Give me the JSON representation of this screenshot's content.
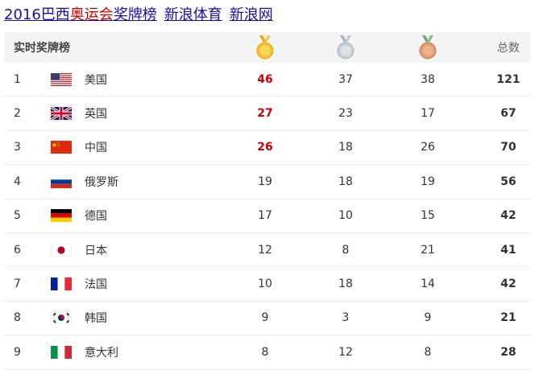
{
  "title": {
    "part1": "2016巴西",
    "part2_highlight": "奥运会",
    "part3": "奖牌榜",
    "part4": "新浪体育",
    "part5": "新浪网"
  },
  "table": {
    "header_label": "实时奖牌榜",
    "header_total": "总数",
    "medal_icons": [
      "gold-medal-icon",
      "silver-medal-icon",
      "bronze-medal-icon"
    ],
    "rows": [
      {
        "rank": "1",
        "country": "美国",
        "flag": "usa-flag-icon",
        "gold": "46",
        "silver": "37",
        "bronze": "38",
        "total": "121",
        "gold_highlight": true
      },
      {
        "rank": "2",
        "country": "英国",
        "flag": "uk-flag-icon",
        "gold": "27",
        "silver": "23",
        "bronze": "17",
        "total": "67",
        "gold_highlight": true
      },
      {
        "rank": "3",
        "country": "中国",
        "flag": "china-flag-icon",
        "gold": "26",
        "silver": "18",
        "bronze": "26",
        "total": "70",
        "gold_highlight": true
      },
      {
        "rank": "4",
        "country": "俄罗斯",
        "flag": "russia-flag-icon",
        "gold": "19",
        "silver": "18",
        "bronze": "19",
        "total": "56",
        "gold_highlight": false
      },
      {
        "rank": "5",
        "country": "德国",
        "flag": "germany-flag-icon",
        "gold": "17",
        "silver": "10",
        "bronze": "15",
        "total": "42",
        "gold_highlight": false
      },
      {
        "rank": "6",
        "country": "日本",
        "flag": "japan-flag-icon",
        "gold": "12",
        "silver": "8",
        "bronze": "21",
        "total": "41",
        "gold_highlight": false
      },
      {
        "rank": "7",
        "country": "法国",
        "flag": "france-flag-icon",
        "gold": "10",
        "silver": "18",
        "bronze": "14",
        "total": "42",
        "gold_highlight": false
      },
      {
        "rank": "8",
        "country": "韩国",
        "flag": "korea-flag-icon",
        "gold": "9",
        "silver": "3",
        "bronze": "9",
        "total": "21",
        "gold_highlight": false
      },
      {
        "rank": "9",
        "country": "意大利",
        "flag": "italy-flag-icon",
        "gold": "8",
        "silver": "12",
        "bronze": "8",
        "total": "28",
        "gold_highlight": false
      }
    ]
  },
  "colors": {
    "link": "#1a0dab",
    "highlight_red": "#cc0000",
    "header_bg": "#f4f4f4",
    "gold": "#f2c230",
    "silver": "#c9ced3",
    "bronze": "#e39a6f"
  }
}
